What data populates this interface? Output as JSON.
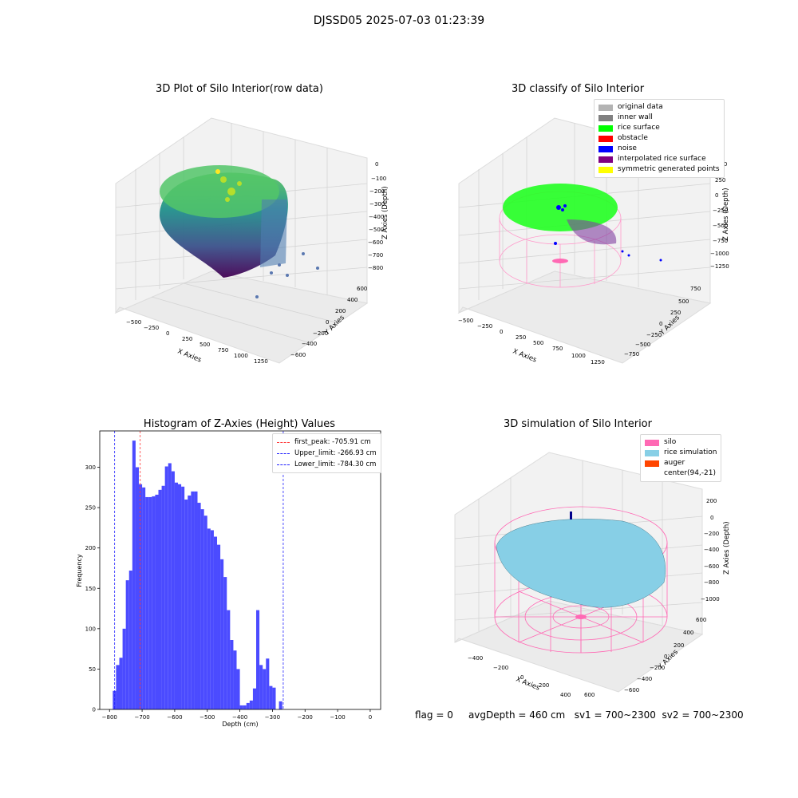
{
  "suptitle": "DJSSD05 2025-07-03 01:23:39",
  "status_line": {
    "flag": "flag = 0",
    "avg_depth": "avgDepth = 460 cm",
    "sv1": "sv1 = 700~2300",
    "sv2": "sv2 = 700~2300"
  },
  "colors": {
    "hist_bar": "#4b4bff",
    "peak_line": "#ff3b3b",
    "limit_line": "#2020ff",
    "silo": "#ff69b4",
    "rice_simulation": "#87cfe6",
    "auger": "#ff4500"
  },
  "chart_data": [
    {
      "type": "scatter3d",
      "title": "3D Plot of Silo Interior(row data)",
      "xlabel": "X Axies",
      "ylabel": "Y Axies",
      "zlabel": "Z Axies (Depth)",
      "x_ticks": [
        "−500",
        "−250",
        "0",
        "250",
        "500",
        "750",
        "1000",
        "1250"
      ],
      "y_ticks": [
        "600",
        "400",
        "200",
        "0",
        "−200",
        "−400",
        "−600"
      ],
      "z_ticks": [
        "0",
        "−100",
        "−200",
        "−300",
        "−400",
        "−500",
        "−600",
        "−700",
        "−800"
      ],
      "colormap": "viridis"
    },
    {
      "type": "scatter3d",
      "title": "3D classify of Silo Interior",
      "xlabel": "X Axies",
      "ylabel": "Y Axies",
      "zlabel": "Z Axies (Depth)",
      "x_ticks": [
        "−500",
        "−250",
        "0",
        "250",
        "500",
        "750",
        "1000",
        "1250"
      ],
      "y_ticks": [
        "750",
        "500",
        "250",
        "0",
        "−250",
        "−500",
        "−750"
      ],
      "z_ticks": [
        "500",
        "250",
        "0",
        "−250",
        "−500",
        "−750",
        "−1000",
        "−1250"
      ],
      "legend": [
        {
          "label": "original data",
          "color": "#b3b3b3"
        },
        {
          "label": "inner wall",
          "color": "#808080"
        },
        {
          "label": "rice surface",
          "color": "#00ff00"
        },
        {
          "label": "obstacle",
          "color": "#ff0000"
        },
        {
          "label": "noise",
          "color": "#0000ff"
        },
        {
          "label": "interpolated rice surface",
          "color": "#800080"
        },
        {
          "label": "symmetric generated points",
          "color": "#ffff00"
        }
      ]
    },
    {
      "type": "bar",
      "title": "Histogram of Z-Axies (Height) Values",
      "xlabel": "Depth (cm)",
      "ylabel": "Frequency",
      "bin_start": -790,
      "bin_width": 10,
      "values": [
        23,
        55,
        64,
        100,
        160,
        172,
        333,
        300,
        279,
        275,
        263,
        263,
        264,
        266,
        272,
        277,
        301,
        305,
        295,
        281,
        279,
        276,
        260,
        265,
        270,
        270,
        256,
        248,
        240,
        224,
        222,
        214,
        204,
        186,
        164,
        123,
        86,
        73,
        50,
        5,
        5,
        8,
        11,
        26,
        123,
        55,
        50,
        63,
        29,
        27,
        0,
        10
      ],
      "xlim": [
        -830,
        32
      ],
      "ylim": [
        0,
        345
      ],
      "x_ticks": [
        -800,
        -700,
        -600,
        -500,
        -400,
        -300,
        -200,
        -100,
        0
      ],
      "y_ticks": [
        0,
        50,
        100,
        150,
        200,
        250,
        300
      ],
      "vlines": [
        {
          "x": -705.91,
          "style": "peak",
          "label": "first_peak: -705.91 cm"
        },
        {
          "x": -266.93,
          "style": "limit",
          "label": "Upper_limit: -266.93 cm"
        },
        {
          "x": -784.3,
          "style": "limit",
          "label": "Lower_limit: -784.30 cm"
        }
      ]
    },
    {
      "type": "surface3d",
      "title": "3D simulation of Silo Interior",
      "xlabel": "X Axies",
      "ylabel": "Y Axies",
      "zlabel": "Z Axies (Depth)",
      "x_ticks": [
        "−400",
        "−200",
        "0",
        "200",
        "400",
        "600"
      ],
      "y_ticks": [
        "600",
        "400",
        "200",
        "0",
        "−200",
        "−400",
        "−600"
      ],
      "z_ticks": [
        "200",
        "0",
        "−200",
        "−400",
        "−600",
        "−800",
        "−1000"
      ],
      "legend": [
        {
          "label": "silo",
          "color": "#ff69b4"
        },
        {
          "label": "rice simulation",
          "color": "#87cfe6"
        },
        {
          "label": "auger",
          "color": "#ff4500"
        },
        {
          "label": "center(94,-21)",
          "color": "#ffffff"
        }
      ]
    }
  ]
}
